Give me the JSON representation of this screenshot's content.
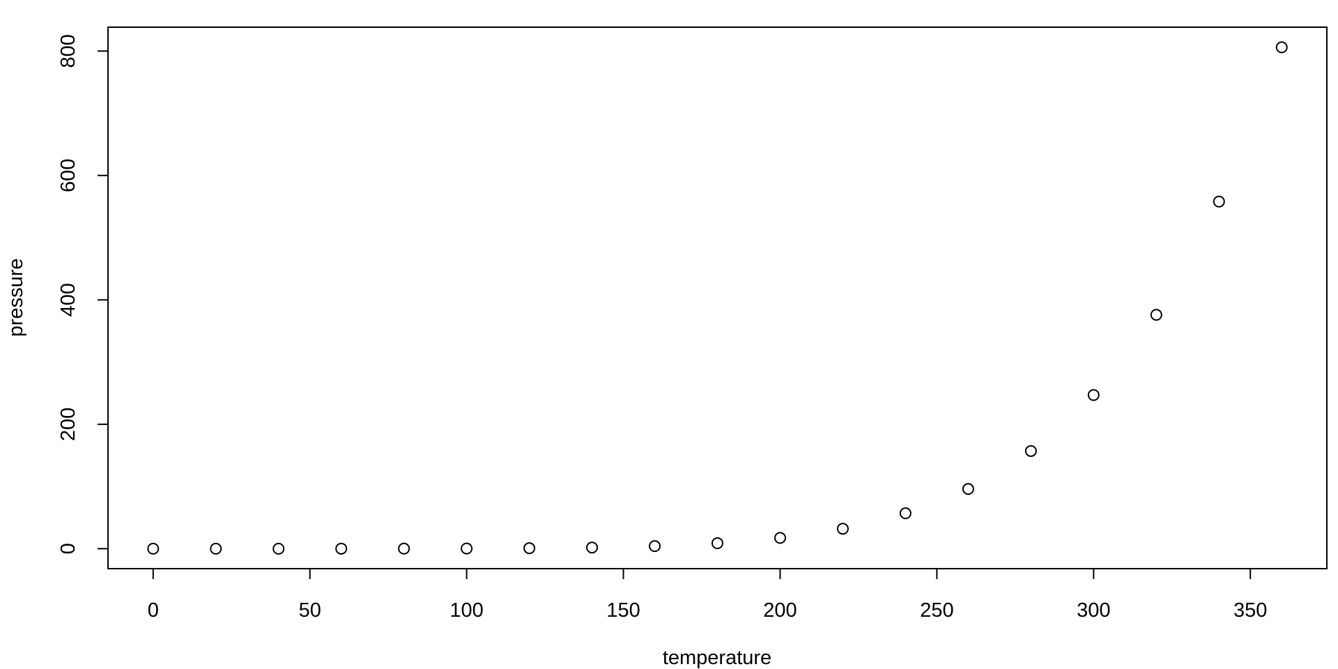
{
  "chart_data": {
    "type": "scatter",
    "title": "",
    "xlabel": "temperature",
    "ylabel": "pressure",
    "xlim": [
      -14.4,
      374.4
    ],
    "ylim": [
      -32.1,
      838.4
    ],
    "xticks": [
      0,
      50,
      100,
      150,
      200,
      250,
      300,
      350
    ],
    "yticks": [
      0,
      200,
      400,
      600,
      800
    ],
    "grid": false,
    "marker": "open-circle",
    "colors": {
      "points": "#000000",
      "axes": "#000000",
      "background": "#ffffff"
    },
    "x": [
      0,
      20,
      40,
      60,
      80,
      100,
      120,
      140,
      160,
      180,
      200,
      220,
      240,
      260,
      280,
      300,
      320,
      340,
      360
    ],
    "y": [
      0.0002,
      0.0012,
      0.006,
      0.03,
      0.09,
      0.27,
      0.75,
      1.85,
      4.2,
      8.8,
      17.3,
      32.1,
      57,
      96,
      157,
      247,
      376,
      558,
      806
    ]
  }
}
